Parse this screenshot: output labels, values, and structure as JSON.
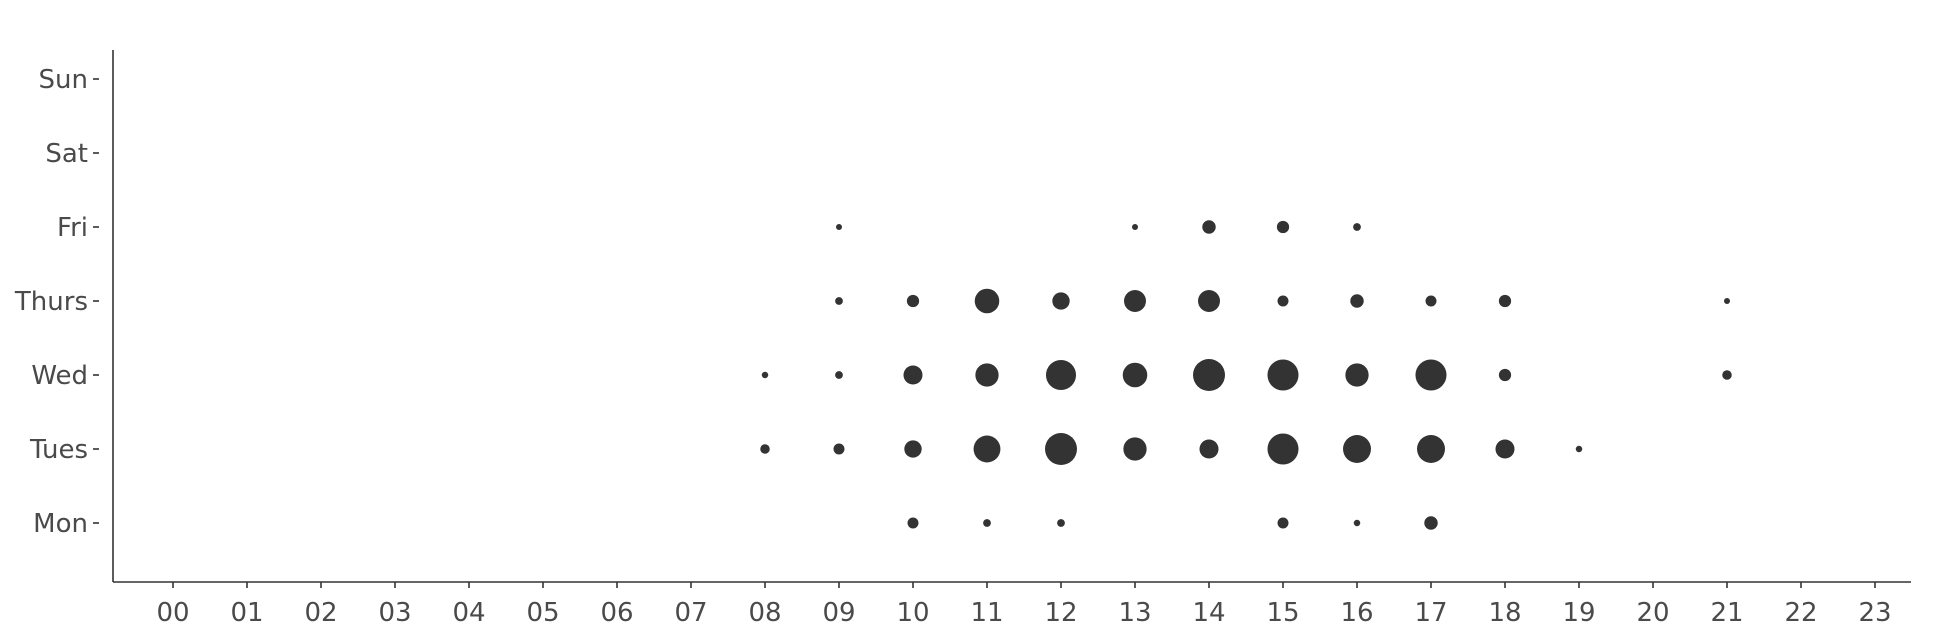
{
  "chart_data": {
    "type": "scatter",
    "title": "",
    "xlabel": "",
    "ylabel": "",
    "x_ticks": [
      "00",
      "01",
      "02",
      "03",
      "04",
      "05",
      "06",
      "07",
      "08",
      "09",
      "10",
      "11",
      "12",
      "13",
      "14",
      "15",
      "16",
      "17",
      "18",
      "19",
      "20",
      "21",
      "22",
      "23"
    ],
    "y_categories": [
      "Mon",
      "Tues",
      "Wed",
      "Thurs",
      "Fri",
      "Sat",
      "Sun"
    ],
    "xlim": [
      -0.8,
      23.5
    ],
    "grid": false,
    "marker_color": "#333333",
    "size_note": "relative bubble size (count) per day/hour",
    "points": [
      {
        "day": "Mon",
        "hour": 10,
        "size": 2
      },
      {
        "day": "Mon",
        "hour": 11,
        "size": 1
      },
      {
        "day": "Mon",
        "hour": 12,
        "size": 1
      },
      {
        "day": "Mon",
        "hour": 15,
        "size": 2
      },
      {
        "day": "Mon",
        "hour": 16,
        "size": 0.7
      },
      {
        "day": "Mon",
        "hour": 17,
        "size": 3
      },
      {
        "day": "Tues",
        "hour": 8,
        "size": 1.5
      },
      {
        "day": "Tues",
        "hour": 9,
        "size": 2
      },
      {
        "day": "Tues",
        "hour": 10,
        "size": 5
      },
      {
        "day": "Tues",
        "hour": 11,
        "size": 12
      },
      {
        "day": "Tues",
        "hour": 12,
        "size": 17
      },
      {
        "day": "Tues",
        "hour": 13,
        "size": 9
      },
      {
        "day": "Tues",
        "hour": 14,
        "size": 6
      },
      {
        "day": "Tues",
        "hour": 15,
        "size": 16
      },
      {
        "day": "Tues",
        "hour": 16,
        "size": 13
      },
      {
        "day": "Tues",
        "hour": 17,
        "size": 13
      },
      {
        "day": "Tues",
        "hour": 18,
        "size": 6
      },
      {
        "day": "Tues",
        "hour": 19,
        "size": 0.7
      },
      {
        "day": "Wed",
        "hour": 8,
        "size": 0.7
      },
      {
        "day": "Wed",
        "hour": 9,
        "size": 1
      },
      {
        "day": "Wed",
        "hour": 10,
        "size": 6
      },
      {
        "day": "Wed",
        "hour": 11,
        "size": 9
      },
      {
        "day": "Wed",
        "hour": 12,
        "size": 15
      },
      {
        "day": "Wed",
        "hour": 13,
        "size": 10
      },
      {
        "day": "Wed",
        "hour": 14,
        "size": 17
      },
      {
        "day": "Wed",
        "hour": 15,
        "size": 16
      },
      {
        "day": "Wed",
        "hour": 16,
        "size": 9
      },
      {
        "day": "Wed",
        "hour": 17,
        "size": 16
      },
      {
        "day": "Wed",
        "hour": 18,
        "size": 2.5
      },
      {
        "day": "Wed",
        "hour": 21,
        "size": 1.5
      },
      {
        "day": "Thurs",
        "hour": 9,
        "size": 1
      },
      {
        "day": "Thurs",
        "hour": 10,
        "size": 2.5
      },
      {
        "day": "Thurs",
        "hour": 11,
        "size": 10
      },
      {
        "day": "Thurs",
        "hour": 12,
        "size": 5
      },
      {
        "day": "Thurs",
        "hour": 13,
        "size": 8
      },
      {
        "day": "Thurs",
        "hour": 14,
        "size": 8
      },
      {
        "day": "Thurs",
        "hour": 15,
        "size": 2
      },
      {
        "day": "Thurs",
        "hour": 16,
        "size": 3
      },
      {
        "day": "Thurs",
        "hour": 17,
        "size": 2
      },
      {
        "day": "Thurs",
        "hour": 18,
        "size": 2.5
      },
      {
        "day": "Thurs",
        "hour": 21,
        "size": 0.5
      },
      {
        "day": "Fri",
        "hour": 9,
        "size": 0.5
      },
      {
        "day": "Fri",
        "hour": 13,
        "size": 0.4
      },
      {
        "day": "Fri",
        "hour": 14,
        "size": 3
      },
      {
        "day": "Fri",
        "hour": 15,
        "size": 2.5
      },
      {
        "day": "Fri",
        "hour": 16,
        "size": 1
      }
    ]
  }
}
